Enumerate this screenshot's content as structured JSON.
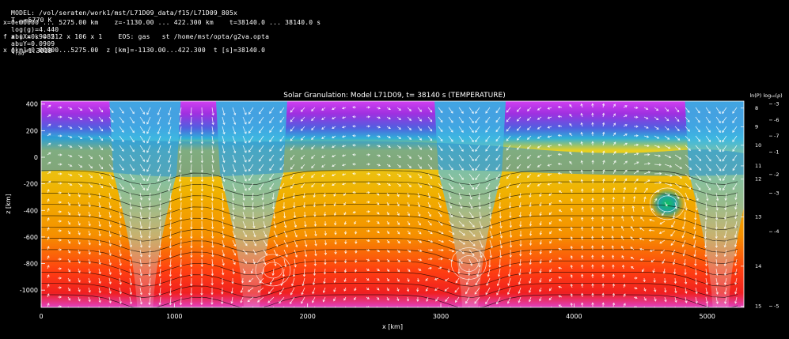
{
  "header": {
    "line1": {
      "model": "MODEL: /vol/seraten/work1/mst/L71D09_data/f15/L71D09_805x",
      "teff_label": "T",
      "teff_sub": "eff",
      "teff_value": "=5770 K",
      "logg": "log(g)=4.440",
      "abux": "abuX=0.9085",
      "abuy": "abuY=0.0909",
      "qrad_label": "Q",
      "qrad_sub": "rad",
      "qrad_value": "=1.3018"
    },
    "line2": "x=0.00000 ... 5275.00 km    z=-1130.00 ... 422.300 km    t=38140.0 ... 38140.0 s",
    "line3": "f x | x k = 212 x 106 x 1    EOS: gas   st /home/mst/opta/g2va.opta",
    "line4": "x [km]=0.00000...5275.00  z [km]=-1130.00...422.300  t [s]=38140.0"
  },
  "colors": {
    "background": "#000000",
    "hot": "#ff2a00",
    "warm": "#f0b800",
    "cool": "#2aa0c8",
    "top": "#c040e0",
    "vectors": "#ffffff",
    "contours": "#000000"
  },
  "chart_data": {
    "type": "heatmap",
    "title": "Solar Granulation: Model L71D09, t= 38140 s   (TEMPERATURE)",
    "xlabel": "x [km]",
    "ylabel": "z [km]",
    "xlim": [
      0,
      5275
    ],
    "ylim": [
      -1130,
      422.3
    ],
    "x_ticks": [
      "0",
      "1000",
      "2000",
      "3000",
      "4000",
      "5000"
    ],
    "y_ticks": [
      "400",
      "200",
      "0",
      "-200",
      "-400",
      "-600",
      "-800",
      "-1000"
    ],
    "right_axis_title": "ln(P) log₁₀(ρ)",
    "right_lnp_ticks": [
      {
        "label": "8",
        "z": 370
      },
      {
        "label": "9",
        "z": 230
      },
      {
        "label": "10",
        "z": 90
      },
      {
        "label": "11",
        "z": -65
      },
      {
        "label": "12",
        "z": -165
      },
      {
        "label": "13",
        "z": -450
      },
      {
        "label": "14",
        "z": -820
      },
      {
        "label": "15",
        "z": -1120
      }
    ],
    "right_logrho_ticks": [
      {
        "label": "-3",
        "z": 400
      },
      {
        "label": "-6",
        "z": 280
      },
      {
        "label": "-7",
        "z": 160
      },
      {
        "label": "-1",
        "z": 40
      },
      {
        "label": "-2",
        "z": -130
      },
      {
        "label": "-3",
        "z": -270
      },
      {
        "label": "-4",
        "z": -560
      },
      {
        "label": "-5",
        "z": -1120
      }
    ],
    "downflow_lanes_x": [
      780,
      1580,
      3220,
      5100
    ],
    "vortex_centers": [
      {
        "x": 1740,
        "z": -850
      },
      {
        "x": 4700,
        "z": -350
      },
      {
        "x": 3210,
        "z": -800
      }
    ],
    "grid": false
  }
}
